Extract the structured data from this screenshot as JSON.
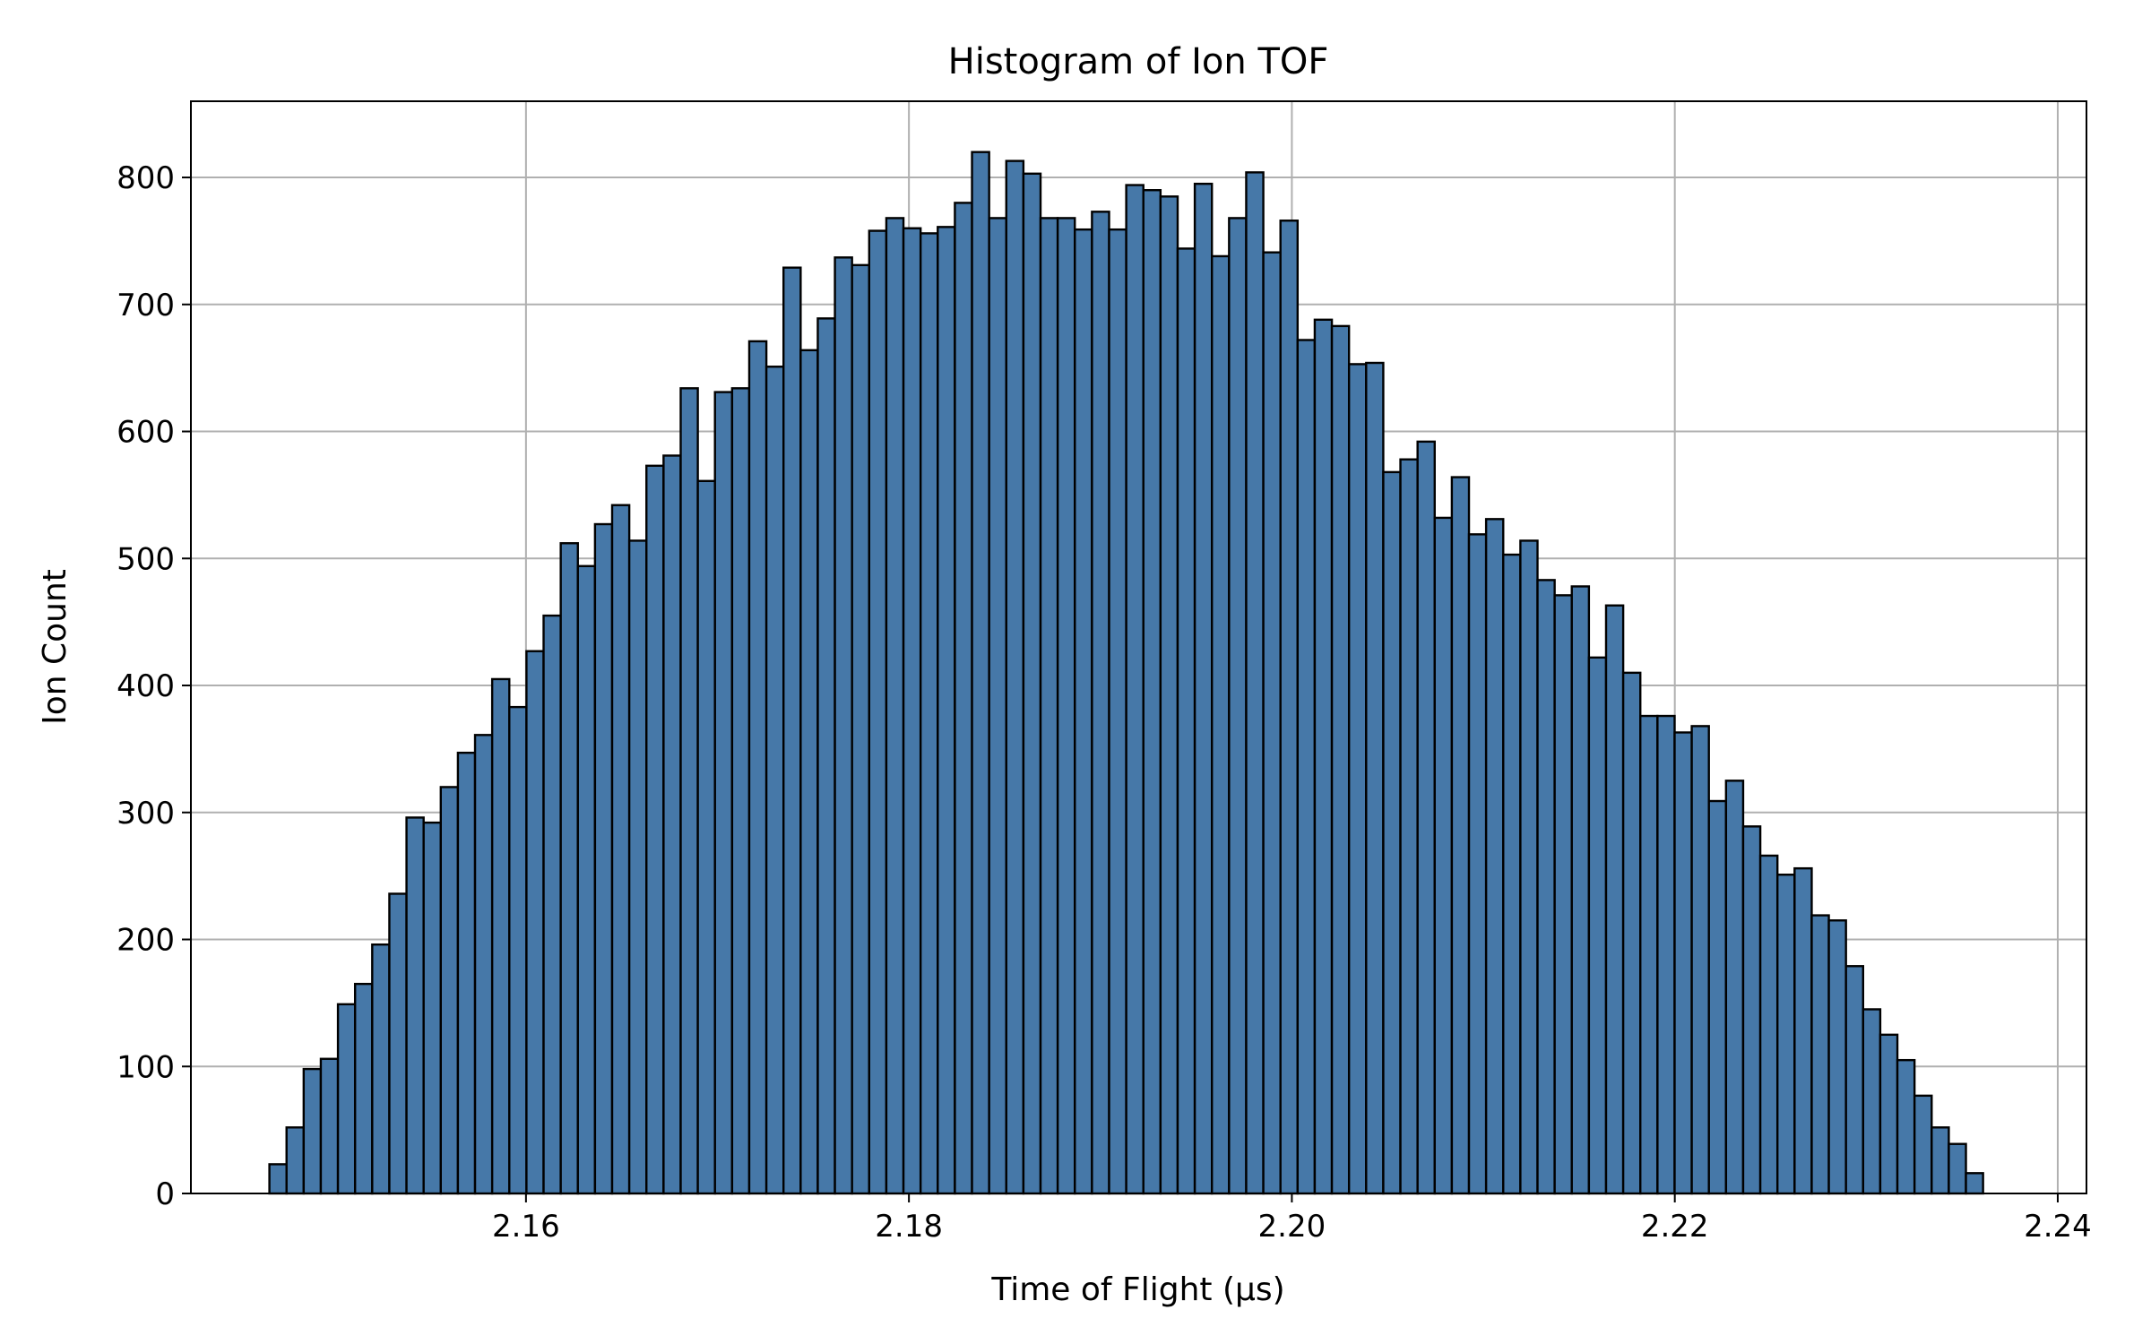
{
  "chart_data": {
    "type": "bar",
    "title": "Histogram of Ion TOF",
    "xlabel": "Time of Flight (µs)",
    "ylabel": "Ion Count",
    "xlim": [
      2.1425,
      2.2415
    ],
    "ylim": [
      0,
      860
    ],
    "xticks": [
      2.16,
      2.18,
      2.2,
      2.22,
      2.24
    ],
    "xtick_labels": [
      "2.16",
      "2.18",
      "2.20",
      "2.22",
      "2.24"
    ],
    "yticks": [
      0,
      100,
      200,
      300,
      400,
      500,
      600,
      700,
      800
    ],
    "ytick_labels": [
      "0",
      "100",
      "200",
      "300",
      "400",
      "500",
      "600",
      "700",
      "800"
    ],
    "grid": true,
    "bar_color": "#4678a8",
    "edge_color": "#000000",
    "grid_color": "#b0b0b0",
    "bin_start": 2.1466,
    "bin_end": 2.2361,
    "values": [
      23,
      52,
      98,
      106,
      149,
      165,
      196,
      236,
      296,
      292,
      320,
      347,
      361,
      405,
      383,
      427,
      455,
      512,
      494,
      527,
      542,
      514,
      573,
      581,
      634,
      561,
      631,
      634,
      671,
      651,
      729,
      664,
      689,
      737,
      731,
      758,
      768,
      760,
      756,
      761,
      780,
      820,
      768,
      813,
      803,
      768,
      768,
      759,
      773,
      759,
      794,
      790,
      785,
      744,
      795,
      738,
      768,
      804,
      741,
      766,
      672,
      688,
      683,
      653,
      654,
      568,
      578,
      592,
      532,
      564,
      519,
      531,
      503,
      514,
      483,
      471,
      478,
      422,
      463,
      410,
      376,
      376,
      363,
      368,
      309,
      325,
      289,
      266,
      251,
      256,
      219,
      215,
      179,
      145,
      125,
      105,
      77,
      52,
      39,
      16
    ]
  }
}
